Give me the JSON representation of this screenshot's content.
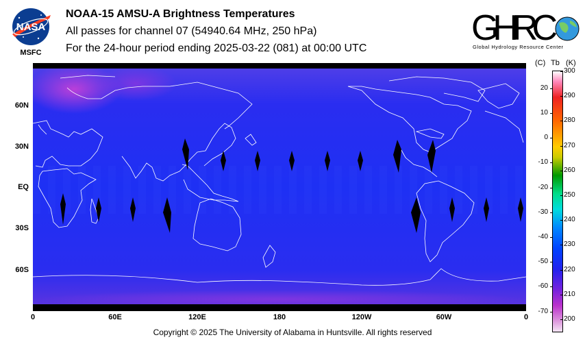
{
  "header": {
    "line1": "NOAA-15 AMSU-A Brightness Temperatures",
    "line2": "All passes for channel 07 (54940.64 MHz, 250 hPa)",
    "line3": "For the 24-hour period ending 2025-03-22 (081) at 00:00 UTC"
  },
  "nasa_logo": {
    "text": "NASA",
    "caption": "MSFC",
    "icon": "nasa-meatball-icon"
  },
  "ghrc_logo": {
    "text": "GHRC",
    "tagline": "Global Hydrology Resource Center",
    "icon": "globe-icon"
  },
  "map": {
    "projection": "equirectangular",
    "lat_labels": [
      "60N",
      "30N",
      "EQ",
      "30S",
      "60S"
    ],
    "lon_labels": [
      "0",
      "60E",
      "120E",
      "180",
      "120W",
      "60W",
      "0"
    ],
    "colors": {
      "field": "#2222ee",
      "coast": "#ffffff",
      "gap": "#000000",
      "polar_high": "#b43cd8"
    }
  },
  "colorbar": {
    "head_c": "(C)",
    "head_tb": "Tb",
    "head_k": "(K)",
    "celsius_labels": [
      "20",
      "10",
      "0",
      "-10",
      "-20",
      "-30",
      "-40",
      "-50",
      "-60",
      "-70"
    ],
    "kelvin_labels": [
      "300",
      "290",
      "280",
      "270",
      "260",
      "250",
      "240",
      "230",
      "220",
      "210",
      "200"
    ],
    "range_k": [
      195,
      300
    ]
  },
  "footer": {
    "copyright": "Copyright © 2025 The University of Alabama in Huntsville.  All rights reserved"
  }
}
